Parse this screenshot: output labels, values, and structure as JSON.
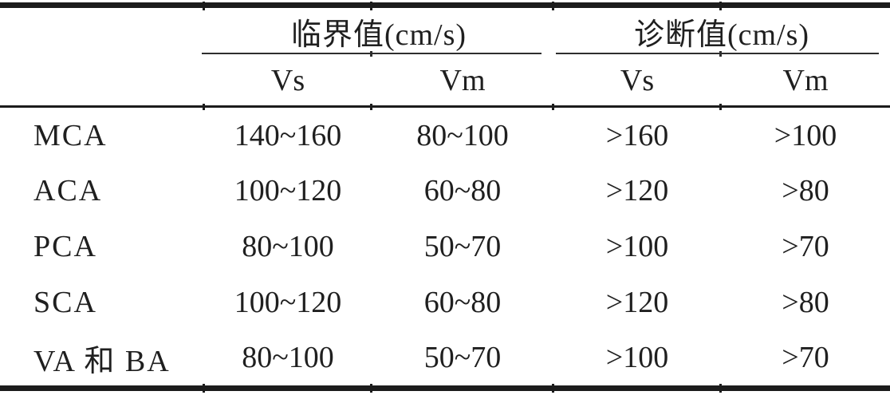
{
  "table": {
    "col_groups": [
      {
        "label": "临界值(cm/s)"
      },
      {
        "label": "诊断值(cm/s)"
      }
    ],
    "sub_headers": [
      "Vs",
      "Vm",
      "Vs",
      "Vm"
    ],
    "rows": [
      {
        "label": "MCA",
        "values": [
          "140~160",
          "80~100",
          ">160",
          ">100"
        ]
      },
      {
        "label": "ACA",
        "values": [
          "100~120",
          "60~80",
          ">120",
          ">80"
        ]
      },
      {
        "label": "PCA",
        "values": [
          "80~100",
          "50~70",
          ">100",
          ">70"
        ]
      },
      {
        "label": "SCA",
        "values": [
          "100~120",
          "60~80",
          ">120",
          ">80"
        ]
      },
      {
        "label": "VA 和 BA",
        "values": [
          "80~100",
          "50~70",
          ">100",
          ">70"
        ]
      }
    ],
    "colors": {
      "background": "#ffffff",
      "text": "#1f1f1f",
      "rule": "#1c1c1c"
    }
  }
}
